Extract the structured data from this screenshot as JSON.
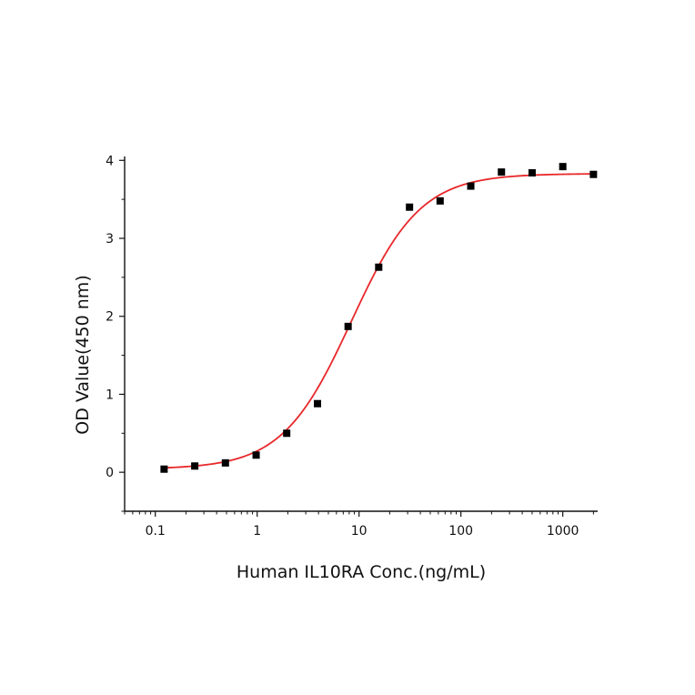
{
  "chart_data": {
    "type": "scatter",
    "title": "",
    "xlabel": "Human IL10RA Conc.(ng/mL)",
    "ylabel": "OD Value(450 nm)",
    "x_scale": "log",
    "xlim": [
      0.05,
      2200
    ],
    "ylim": [
      -0.5,
      4.05
    ],
    "x_ticks": [
      0.1,
      1,
      10,
      100,
      1000
    ],
    "x_tick_labels": [
      "0.1",
      "1",
      "10",
      "100",
      "1000"
    ],
    "y_ticks": [
      0,
      1,
      2,
      3,
      4
    ],
    "y_tick_labels": [
      "0",
      "1",
      "2",
      "3",
      "4"
    ],
    "grid": false,
    "legend": "none",
    "series": [
      {
        "kind": "points",
        "marker": "square",
        "color": "#000000",
        "x": [
          0.122,
          0.244,
          0.488,
          0.977,
          1.95,
          3.91,
          7.81,
          15.6,
          31.3,
          62.5,
          125,
          250,
          500,
          1000,
          2000
        ],
        "y": [
          0.04,
          0.08,
          0.12,
          0.22,
          0.5,
          0.88,
          1.87,
          2.63,
          3.4,
          3.48,
          3.67,
          3.85,
          3.84,
          3.92,
          3.82
        ]
      },
      {
        "kind": "fit-curve",
        "color": "#e8282b",
        "model": "4PL",
        "bottom": 0.04,
        "top": 3.83,
        "ec50": 8.4,
        "hill": 1.28,
        "x_range": [
          0.122,
          2000
        ]
      }
    ]
  }
}
